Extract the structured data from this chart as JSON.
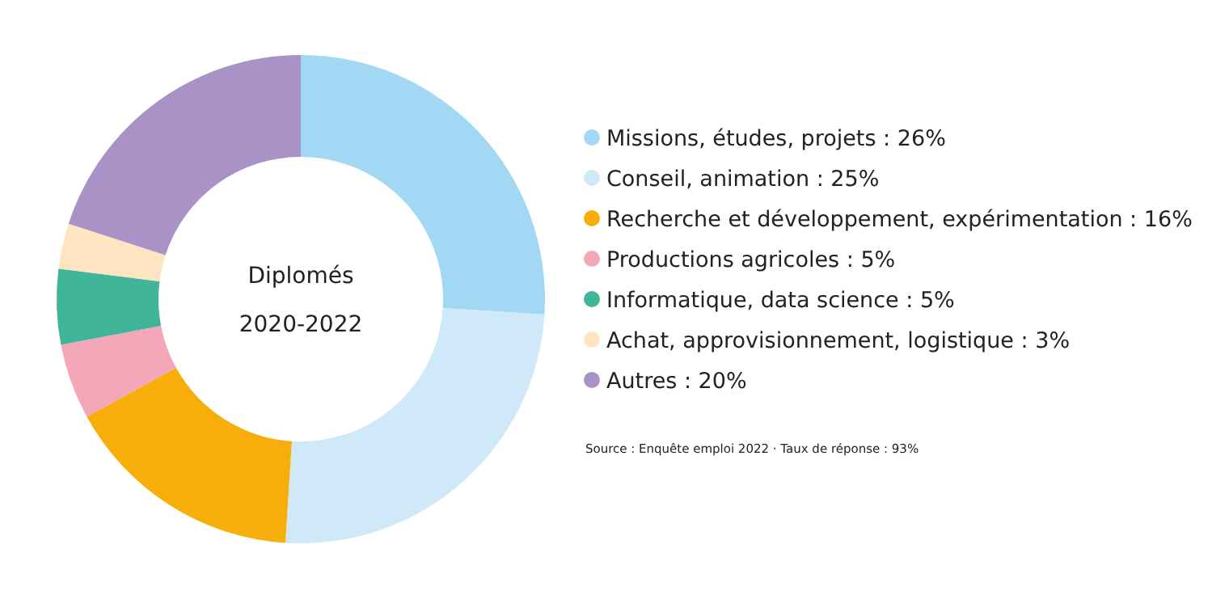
{
  "chart_data": {
    "type": "donut",
    "title": "Diplomés",
    "subtitle": "2020-2022",
    "categories": [
      "Missions, études, projets : 26%",
      "Conseil, animation : 25%",
      "Recherche et développement, expérimentation : 16%",
      "Productions agricoles : 5%",
      "Informatique, data science : 5%",
      "Achat, approvisionnement, logistique : 3%",
      "Autres : 20%"
    ],
    "values": [
      26,
      25,
      16,
      5,
      5,
      3,
      20
    ],
    "colors": [
      "#a3d8f5",
      "#cfe9f8",
      "#f8ae0a",
      "#f3a7b8",
      "#41b59a",
      "#fee5c2",
      "#a992c5"
    ],
    "legend": "right",
    "annotations": [
      "Source : Enquête emploi 2022 · Taux de réponse : 93%"
    ]
  }
}
